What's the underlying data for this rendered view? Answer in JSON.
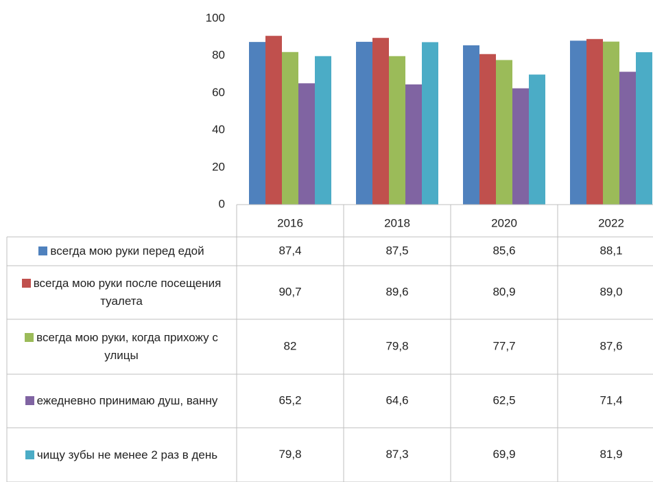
{
  "chart_data": {
    "type": "bar",
    "categories": [
      "2016",
      "2018",
      "2020",
      "2022"
    ],
    "series": [
      {
        "name": "всегда мою руки перед едой",
        "color": "#4f81bd",
        "values": [
          87.4,
          87.5,
          85.6,
          88.1
        ],
        "value_labels": [
          "87,4",
          "87,5",
          "85,6",
          "88,1"
        ]
      },
      {
        "name": "всегда мою руки после посещения туалета",
        "color": "#c0504d",
        "values": [
          90.7,
          89.6,
          80.9,
          89.0
        ],
        "value_labels": [
          "90,7",
          "89,6",
          "80,9",
          "89,0"
        ]
      },
      {
        "name": "всегда мою руки, когда прихожу с улицы",
        "color": "#9bbb59",
        "values": [
          82,
          79.8,
          77.7,
          87.6
        ],
        "value_labels": [
          "82",
          "79,8",
          "77,7",
          "87,6"
        ]
      },
      {
        "name": "ежедневно принимаю душ, ванну",
        "color": "#8064a2",
        "values": [
          65.2,
          64.6,
          62.5,
          71.4
        ],
        "value_labels": [
          "65,2",
          "64,6",
          "62,5",
          "71,4"
        ]
      },
      {
        "name": "чищу зубы не менее 2 раз в день",
        "color": "#4bacc6",
        "values": [
          79.8,
          87.3,
          69.9,
          81.9
        ],
        "value_labels": [
          "79,8",
          "87,3",
          "69,9",
          "81,9"
        ]
      }
    ],
    "ylim": [
      0,
      100
    ],
    "yticks": [
      0,
      20,
      40,
      60,
      80,
      100
    ],
    "grid": false
  }
}
